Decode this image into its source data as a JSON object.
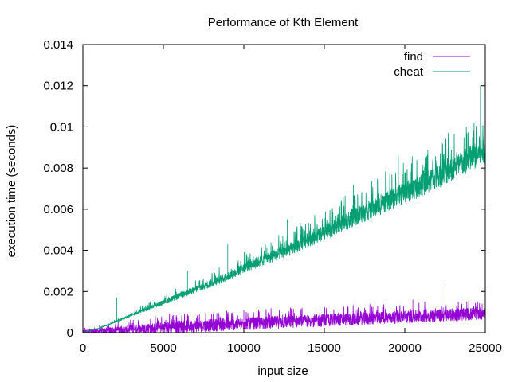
{
  "chart_data": {
    "type": "line",
    "title": "Performance of Kth Element",
    "xlabel": "input size",
    "ylabel": "execution time (seconds)",
    "xlim": [
      0,
      25000
    ],
    "ylim": [
      0,
      0.014
    ],
    "x_ticks": [
      0,
      5000,
      10000,
      15000,
      20000,
      25000
    ],
    "x_tick_labels": [
      "0",
      "5000",
      "10000",
      "15000",
      "20000",
      "25000"
    ],
    "y_ticks": [
      0,
      0.002,
      0.004,
      0.006,
      0.008,
      0.01,
      0.012,
      0.014
    ],
    "y_tick_labels": [
      "0",
      "0.002",
      "0.004",
      "0.006",
      "0.008",
      "0.01",
      "0.012",
      "0.014"
    ],
    "grid": false,
    "legend_position": "top-right",
    "series": [
      {
        "name": "find",
        "color": "#9400d3",
        "x": [
          0,
          1000,
          2000,
          3000,
          4000,
          5000,
          6000,
          7000,
          8000,
          9000,
          10000,
          11000,
          12000,
          13000,
          14000,
          15000,
          16000,
          17000,
          18000,
          19000,
          20000,
          21000,
          22000,
          23000,
          24000,
          25000
        ],
        "y": [
          0,
          3e-05,
          6e-05,
          0.0001,
          0.00013,
          0.00016,
          0.0002,
          0.00023,
          0.00026,
          0.0003,
          0.00033,
          0.00036,
          0.0004,
          0.00043,
          0.00046,
          0.0005,
          0.00053,
          0.00056,
          0.0006,
          0.00063,
          0.00066,
          0.0007,
          0.00073,
          0.00076,
          0.0008,
          0.00085
        ],
        "spikes": [
          [
            8000,
            0.0009
          ],
          [
            10000,
            0.0011
          ],
          [
            14500,
            0.0009
          ],
          [
            17500,
            0.0012
          ],
          [
            20500,
            0.0016
          ],
          [
            22500,
            0.0023
          ],
          [
            23500,
            0.0015
          ],
          [
            24800,
            0.0014
          ]
        ]
      },
      {
        "name": "cheat",
        "color": "#009e73",
        "x": [
          0,
          1000,
          2000,
          3000,
          4000,
          5000,
          6000,
          7000,
          8000,
          9000,
          10000,
          11000,
          12000,
          13000,
          14000,
          15000,
          16000,
          17000,
          18000,
          19000,
          20000,
          21000,
          22000,
          23000,
          24000,
          25000
        ],
        "y": [
          0,
          0.0002,
          0.0005,
          0.0008,
          0.0011,
          0.0014,
          0.0017,
          0.002,
          0.0023,
          0.0026,
          0.003,
          0.0033,
          0.0036,
          0.0039,
          0.0043,
          0.0046,
          0.005,
          0.0054,
          0.0057,
          0.0061,
          0.0065,
          0.0068,
          0.0072,
          0.0076,
          0.008,
          0.0085
        ],
        "spikes": [
          [
            2100,
            0.0017
          ],
          [
            6500,
            0.003
          ],
          [
            9000,
            0.0043
          ],
          [
            12700,
            0.0055
          ],
          [
            16800,
            0.0072
          ],
          [
            19600,
            0.0086
          ],
          [
            22700,
            0.0097
          ],
          [
            24700,
            0.012
          ]
        ]
      }
    ]
  }
}
